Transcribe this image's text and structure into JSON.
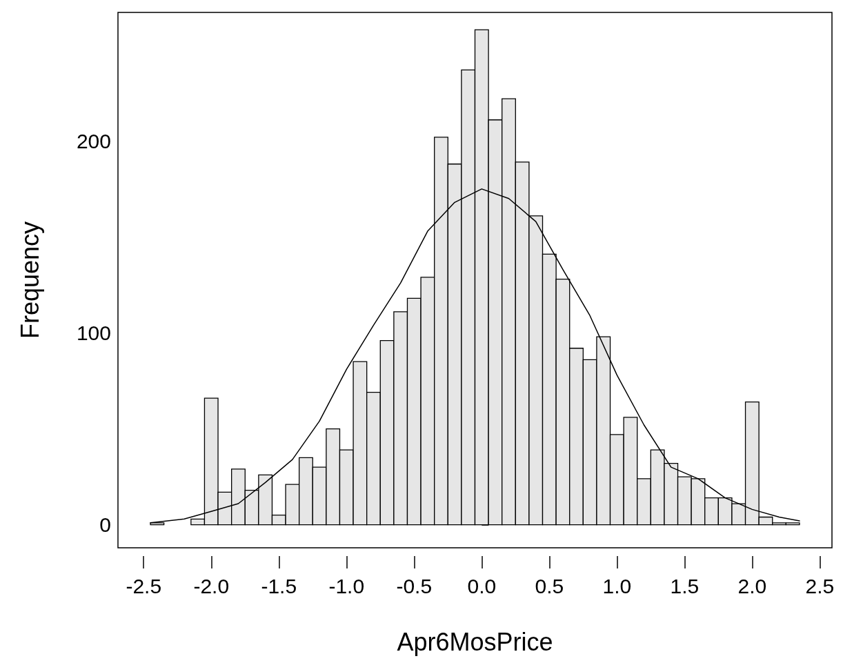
{
  "chart_data": {
    "type": "histogram",
    "xlabel": "Apr6MosPrice",
    "ylabel": "Frequency",
    "bins": [
      -2.45,
      -2.35,
      -2.25,
      -2.15,
      -2.05,
      -1.95,
      -1.85,
      -1.75,
      -1.65,
      -1.55,
      -1.45,
      -1.35,
      -1.25,
      -1.15,
      -1.05,
      -0.95,
      -0.85,
      -0.75,
      -0.65,
      -0.55,
      -0.45,
      -0.35,
      -0.25,
      -0.15,
      -0.05,
      0.05,
      0.15,
      0.25,
      0.35,
      0.45,
      0.55,
      0.65,
      0.75,
      0.85,
      0.95,
      1.05,
      1.15,
      1.25,
      1.35,
      1.45,
      1.55,
      1.65,
      1.75,
      1.85,
      1.95,
      2.05,
      2.15,
      2.25,
      2.35
    ],
    "values": [
      1,
      0,
      0,
      3,
      66,
      17,
      29,
      18,
      26,
      5,
      21,
      35,
      30,
      50,
      39,
      85,
      69,
      96,
      111,
      118,
      129,
      202,
      188,
      237,
      258,
      211,
      222,
      189,
      161,
      141,
      128,
      92,
      86,
      98,
      47,
      56,
      24,
      39,
      32,
      25,
      24,
      14,
      14,
      11,
      64,
      4,
      1,
      1
    ],
    "color": "#e6e6e6",
    "series": [
      {
        "type": "line",
        "color": "#000000",
        "x": [
          -2.45,
          -2.2,
          -2.0,
          -1.8,
          -1.6,
          -1.4,
          -1.2,
          -1.0,
          -0.8,
          -0.6,
          -0.4,
          -0.2,
          0.0,
          0.2,
          0.4,
          0.6,
          0.8,
          1.0,
          1.2,
          1.4,
          1.6,
          1.8,
          2.0,
          2.2,
          2.35
        ],
        "values": [
          1,
          3,
          7,
          11,
          22,
          34,
          54,
          81,
          104,
          126,
          153,
          168,
          175,
          170,
          158,
          133,
          109,
          78,
          52,
          30,
          24,
          14,
          8,
          4,
          2
        ]
      }
    ],
    "marker": "none",
    "line_style": "solid",
    "xlim": [
      -2.69,
      2.59
    ],
    "xticks": [
      {
        "value": -2.5,
        "label": "-2.5"
      },
      {
        "value": -2.0,
        "label": "-2.0"
      },
      {
        "value": -1.5,
        "label": "-1.5"
      },
      {
        "value": -1.0,
        "label": "-1.0"
      },
      {
        "value": -0.5,
        "label": "-0.5"
      },
      {
        "value": 0,
        "label": "0.0"
      },
      {
        "value": 0.5,
        "label": "0.5"
      },
      {
        "value": 1.0,
        "label": "1.0"
      },
      {
        "value": 1.5,
        "label": "1.5"
      },
      {
        "value": 2.0,
        "label": "2.0"
      },
      {
        "value": 2.5,
        "label": "2.5"
      }
    ],
    "ylim": [
      -12,
      267
    ],
    "yticks": [
      0,
      100,
      200
    ],
    "grid": false
  }
}
